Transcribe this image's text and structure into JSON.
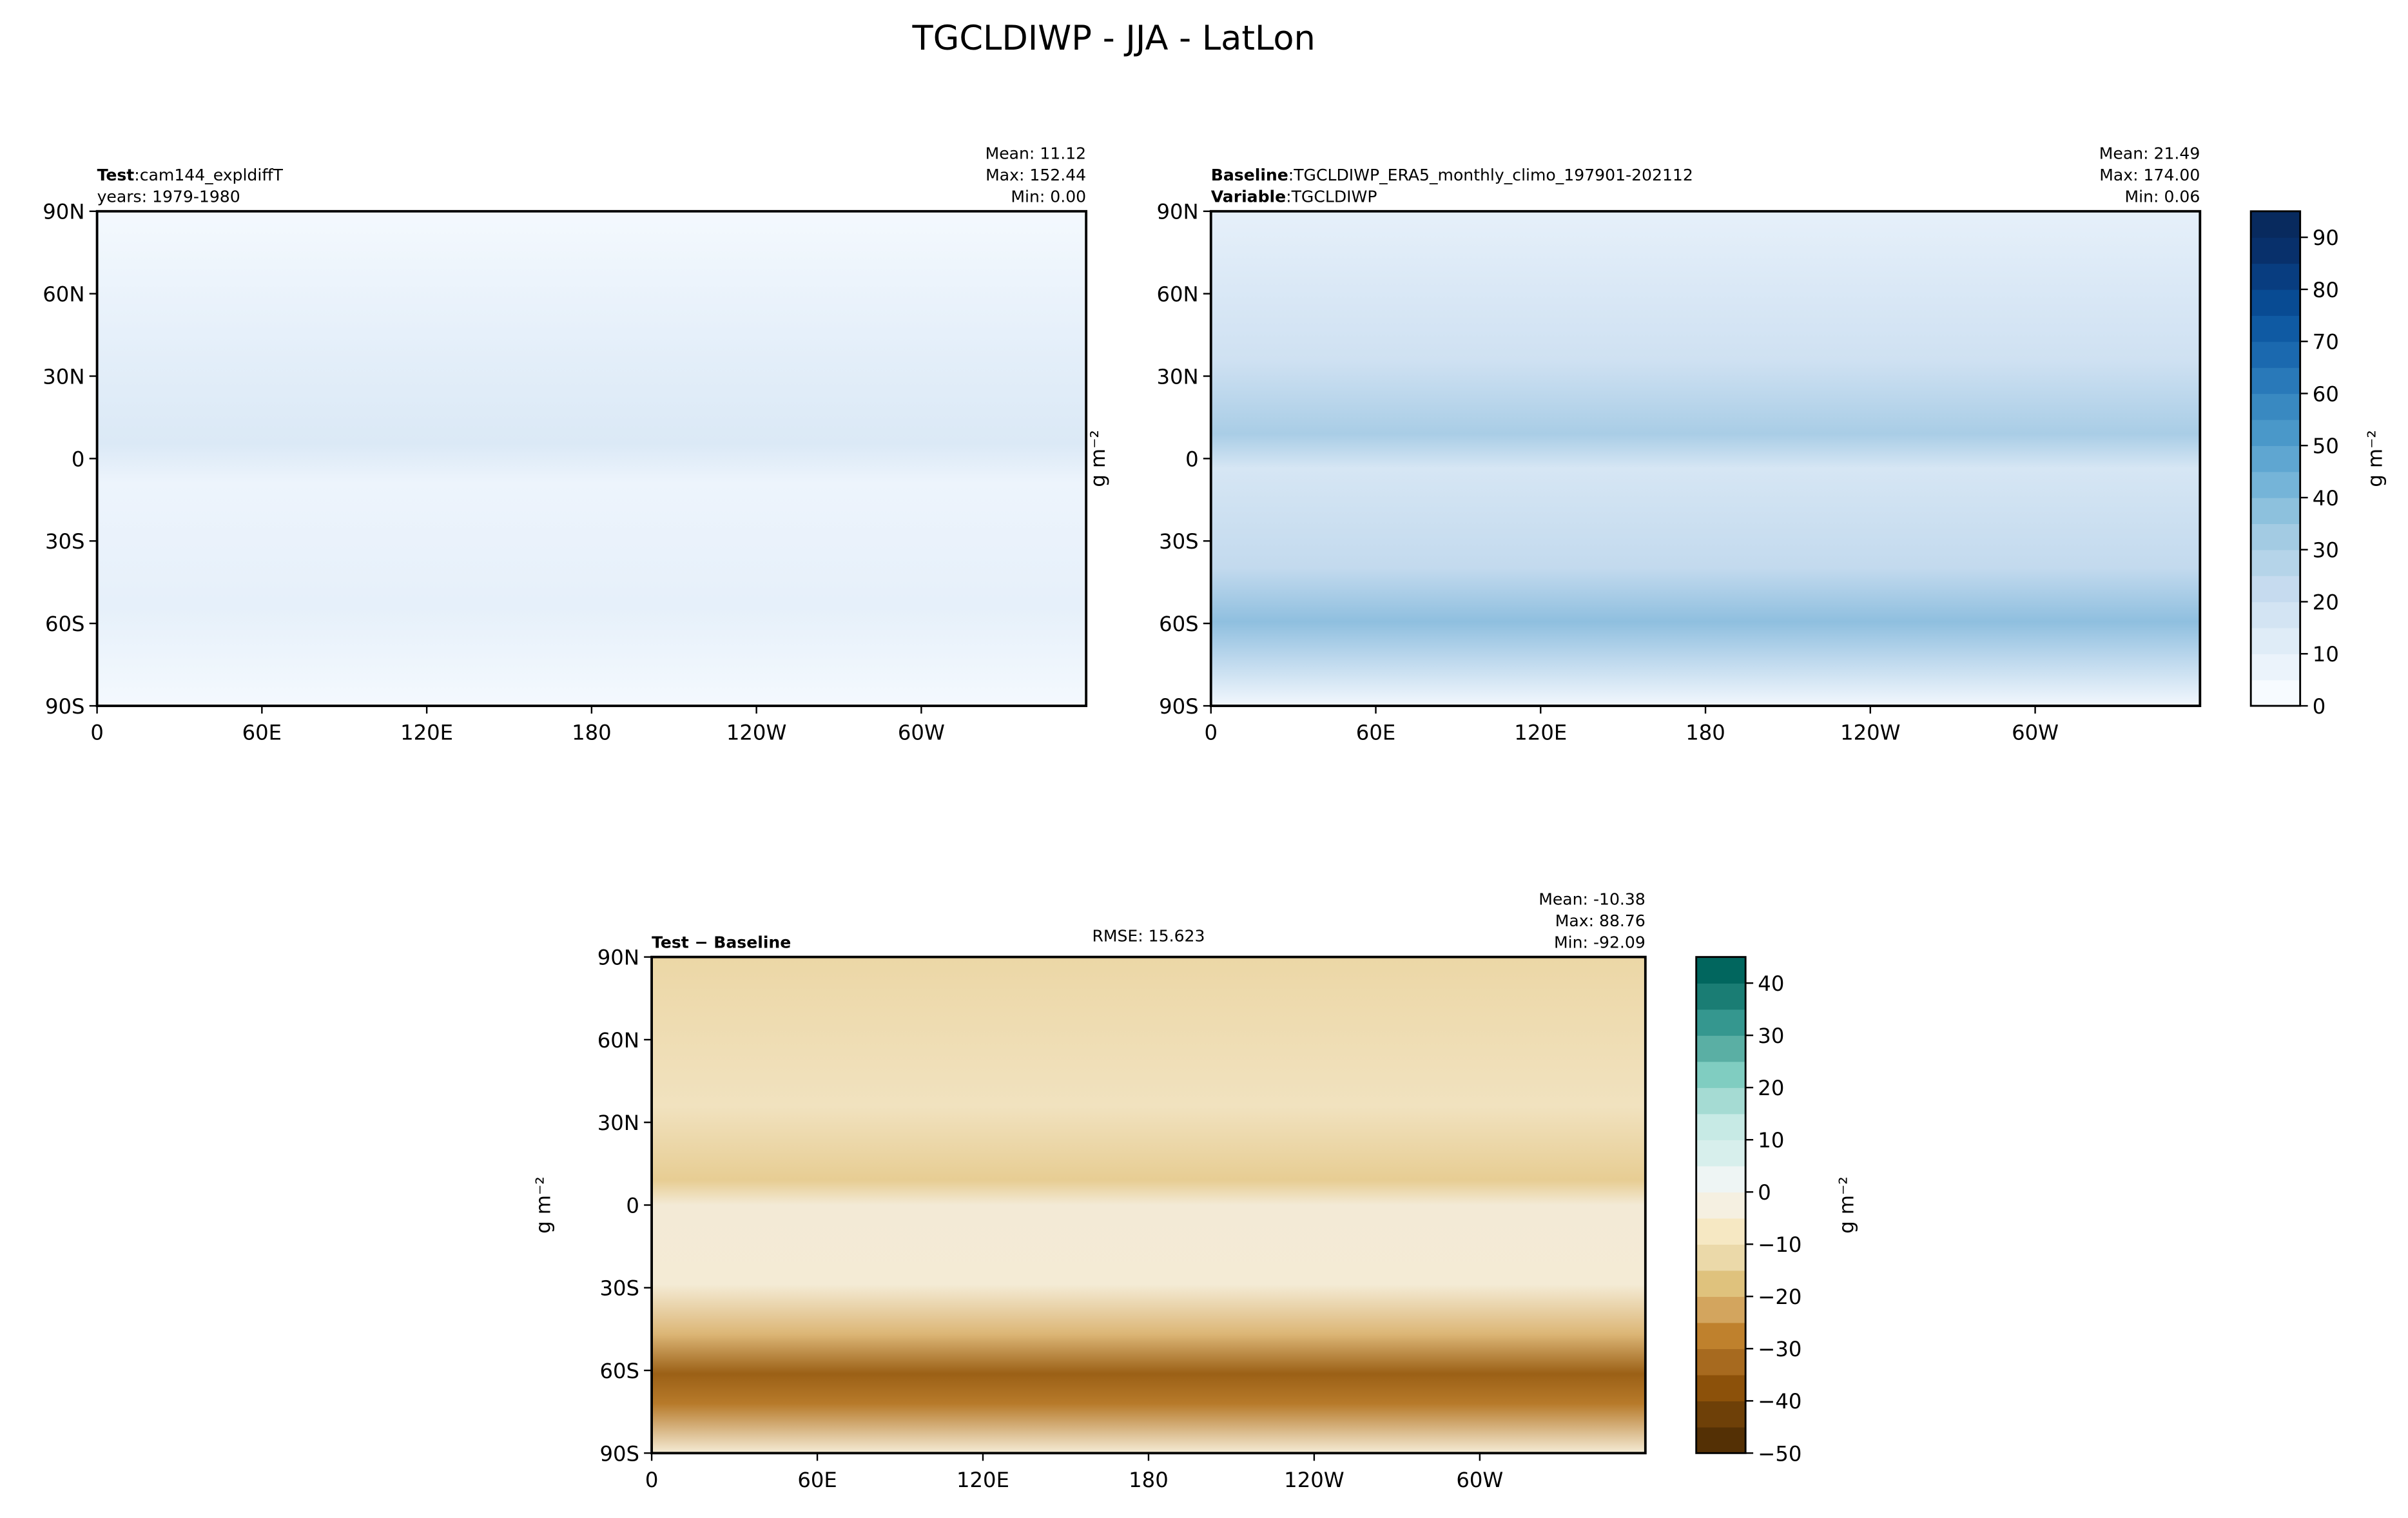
{
  "title": "TGCLDIWP - JJA - LatLon",
  "chart_data": [
    {
      "type": "contour-map",
      "labels": [
        {
          "bold": "Test",
          "text": ":cam144_expldiffT"
        },
        {
          "text": "years: 1979-1980"
        }
      ],
      "stats": [
        "Mean: 11.12",
        "Max: 152.44",
        "Min:  0.00"
      ],
      "xlim": [
        0,
        360
      ],
      "xticks": [
        0,
        {
          "value": 60,
          "label": "60E"
        },
        {
          "value": 120,
          "label": "120E"
        },
        180,
        {
          "value": 240,
          "label": "120W"
        },
        {
          "value": 300,
          "label": "60W"
        }
      ],
      "ylim": [
        -90,
        90
      ],
      "yticks": [
        {
          "value": 90,
          "label": "90N"
        },
        {
          "value": 60,
          "label": "60N"
        },
        {
          "value": 30,
          "label": "30N"
        },
        0,
        {
          "value": -30,
          "label": "30S"
        },
        {
          "value": -60,
          "label": "60S"
        },
        {
          "value": -90,
          "label": "90S"
        }
      ]
    },
    {
      "type": "contour-map",
      "labels": [
        {
          "bold": "Baseline",
          "text": ":TGCLDIWP_ERA5_monthly_climo_197901-202112"
        },
        {
          "bold": "Variable",
          "text": ":TGCLDIWP"
        }
      ],
      "stats": [
        "Mean: 21.49",
        "Max: 174.00",
        "Min:  0.06"
      ],
      "ylabel": "g m⁻²",
      "xlim": [
        0,
        360
      ],
      "xticks": [
        0,
        {
          "value": 60,
          "label": "60E"
        },
        {
          "value": 120,
          "label": "120E"
        },
        180,
        {
          "value": 240,
          "label": "120W"
        },
        {
          "value": 300,
          "label": "60W"
        }
      ],
      "ylim": [
        -90,
        90
      ],
      "yticks": [
        {
          "value": 90,
          "label": "90N"
        },
        {
          "value": 60,
          "label": "60N"
        },
        {
          "value": 30,
          "label": "30N"
        },
        0,
        {
          "value": -30,
          "label": "30S"
        },
        {
          "value": -60,
          "label": "60S"
        },
        {
          "value": -90,
          "label": "90S"
        }
      ],
      "colorbar": {
        "label": "g m⁻²",
        "ylim": [
          0,
          95
        ],
        "yticks": [
          0,
          10,
          20,
          30,
          40,
          50,
          60,
          70,
          80,
          90
        ],
        "colors": [
          "#f7fbff",
          "#ebf3fb",
          "#dfecf7",
          "#d3e4f3",
          "#c6dbef",
          "#b5d4e9",
          "#a3cbe3",
          "#8dc1dd",
          "#75b4d8",
          "#5fa6d1",
          "#4a98c9",
          "#3989c1",
          "#2979b9",
          "#1b69af",
          "#0f5aa3",
          "#084b93",
          "#083d80",
          "#08306b",
          "#082a5e"
        ]
      }
    },
    {
      "type": "contour-map",
      "labels": [
        {
          "bold": "Test − Baseline"
        }
      ],
      "center_text": "RMSE: 15.623",
      "stats": [
        "Mean: -10.38",
        "Max: 88.76",
        "Min: -92.09"
      ],
      "ylabel": "g m⁻²",
      "xlim": [
        0,
        360
      ],
      "xticks": [
        0,
        {
          "value": 60,
          "label": "60E"
        },
        {
          "value": 120,
          "label": "120E"
        },
        180,
        {
          "value": 240,
          "label": "120W"
        },
        {
          "value": 300,
          "label": "60W"
        }
      ],
      "ylim": [
        -90,
        90
      ],
      "yticks": [
        {
          "value": 90,
          "label": "90N"
        },
        {
          "value": 60,
          "label": "60N"
        },
        {
          "value": 30,
          "label": "30N"
        },
        0,
        {
          "value": -30,
          "label": "30S"
        },
        {
          "value": -60,
          "label": "60S"
        },
        {
          "value": -90,
          "label": "90S"
        }
      ],
      "colorbar": {
        "label": "g m⁻²",
        "ylim": [
          -50,
          45
        ],
        "yticks": [
          {
            "value": -50,
            "label": "−50"
          },
          {
            "value": -40,
            "label": "−40"
          },
          {
            "value": -30,
            "label": "−30"
          },
          {
            "value": -20,
            "label": "−20"
          },
          {
            "value": -10,
            "label": "−10"
          },
          0,
          10,
          20,
          30,
          40
        ],
        "colors": [
          "#543005",
          "#6e4008",
          "#8c510a",
          "#a76a1f",
          "#bf812d",
          "#d3a55e",
          "#dfc27d",
          "#ebd9a9",
          "#f6e8c3",
          "#f5f0e1",
          "#eef5f4",
          "#d7efec",
          "#c7eae5",
          "#a5dbd3",
          "#80cdc1",
          "#5aafa4",
          "#35978f",
          "#1a7d74",
          "#01665e"
        ]
      }
    }
  ]
}
